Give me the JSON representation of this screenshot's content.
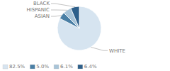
{
  "chart_data": {
    "type": "pie",
    "categories": [
      "WHITE",
      "ASIAN",
      "HISPANIC",
      "BLACK"
    ],
    "values": [
      82.5,
      5.0,
      6.1,
      6.4
    ],
    "value_labels": [
      "82.5%",
      "5.0%",
      "6.1%",
      "6.4%"
    ],
    "colors": [
      "#d6e4f0",
      "#4a7fa5",
      "#a8c4d8",
      "#2d5f8a"
    ],
    "legend": "lower left"
  }
}
